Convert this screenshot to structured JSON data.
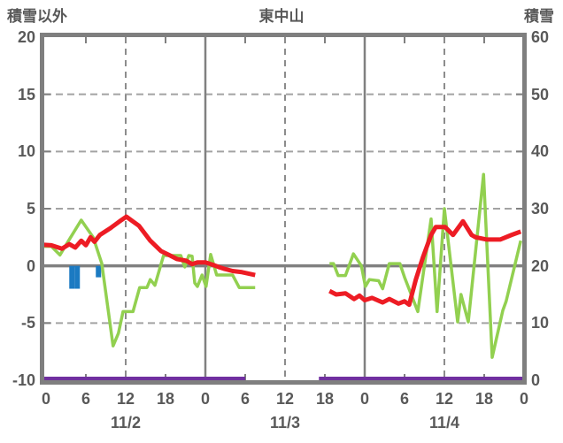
{
  "header": {
    "left_axis_title": "積雪以外",
    "chart_title": "東中山",
    "right_axis_title": "積雪"
  },
  "chart_data": {
    "type": "line",
    "title": "東中山",
    "left_axis": {
      "title": "積雪以外",
      "range": [
        -10,
        20
      ],
      "tick_labels": [
        "20",
        "15",
        "10",
        "5",
        "0",
        "-5",
        "-10"
      ],
      "tick_values": [
        20,
        15,
        10,
        5,
        0,
        -5,
        -10
      ]
    },
    "right_axis": {
      "title": "積雪",
      "range": [
        0,
        60
      ],
      "tick_labels": [
        "60",
        "50",
        "40",
        "30",
        "20",
        "10",
        "0"
      ],
      "tick_values": [
        60,
        50,
        40,
        30,
        20,
        10,
        0
      ]
    },
    "x_axis": {
      "range_hours": [
        0,
        72
      ],
      "tick_hours": [
        0,
        6,
        12,
        18,
        24,
        30,
        36,
        42,
        48,
        54,
        60,
        66,
        72
      ],
      "tick_labels": [
        "0",
        "6",
        "12",
        "18",
        "0",
        "6",
        "12",
        "18",
        "0",
        "6",
        "12",
        "18",
        "0"
      ],
      "date_labels": [
        {
          "label": "11/2",
          "center_hour": 12
        },
        {
          "label": "11/3",
          "center_hour": 36
        },
        {
          "label": "11/4",
          "center_hour": 60
        }
      ]
    },
    "gridlines": {
      "horizontal_dashed_values": [
        15,
        10,
        5,
        -5
      ],
      "horizontal_solid_values": [
        0
      ],
      "vertical_solid_hours": [
        24,
        48
      ],
      "vertical_dashed_hours": [
        12,
        36,
        60
      ],
      "minor_tick_hours": [
        6,
        18,
        30,
        42,
        54,
        66
      ],
      "minor_tick_values": [
        15,
        10,
        5,
        -5
      ]
    },
    "series": [
      {
        "id": "purple-line",
        "axis": "right",
        "color": "#7030a0",
        "segments": [
          [
            [
              -0.5,
              0
            ],
            [
              30.0,
              0
            ]
          ],
          [
            [
              41.1,
              0
            ],
            [
              71.9,
              0
            ]
          ]
        ]
      },
      {
        "id": "green-line",
        "axis": "left",
        "color": "#92d050",
        "segments": [
          [
            [
              -0.5,
              1.7
            ],
            [
              0.8,
              1.7
            ],
            [
              2.1,
              0.95
            ],
            [
              3.5,
              2.3
            ],
            [
              5.3,
              4.0
            ],
            [
              7.1,
              2.5
            ],
            [
              8.4,
              0.2
            ],
            [
              10.1,
              -7.0
            ],
            [
              10.9,
              -5.9
            ],
            [
              11.6,
              -4.0
            ],
            [
              13.1,
              -4.0
            ],
            [
              14.1,
              -1.9
            ],
            [
              15.2,
              -1.9
            ],
            [
              15.7,
              -1.2
            ],
            [
              16.4,
              -1.7
            ],
            [
              17.7,
              0.9
            ],
            [
              20.3,
              0.9
            ],
            [
              20.9,
              -0.1
            ],
            [
              21.5,
              0.9
            ],
            [
              22.0,
              0.85
            ],
            [
              22.4,
              -1.5
            ],
            [
              22.8,
              -1.8
            ],
            [
              23.5,
              -0.8
            ],
            [
              24.1,
              -1.8
            ],
            [
              24.8,
              1.0
            ],
            [
              25.7,
              -0.8
            ],
            [
              28.1,
              -0.8
            ],
            [
              29.1,
              -1.9
            ],
            [
              31.5,
              -1.9
            ]
          ],
          [
            [
              42.7,
              0.2
            ],
            [
              43.3,
              0.2
            ],
            [
              44.0,
              -0.85
            ],
            [
              45.1,
              -0.85
            ],
            [
              46.3,
              1.05
            ],
            [
              47.5,
              0.0
            ],
            [
              48.1,
              -1.8
            ],
            [
              48.7,
              -1.2
            ],
            [
              50.1,
              -1.3
            ],
            [
              50.7,
              -2.0
            ],
            [
              51.7,
              0.2
            ],
            [
              53.3,
              0.2
            ],
            [
              54.0,
              -1.0
            ],
            [
              56.0,
              -4.0
            ],
            [
              58.0,
              4.1
            ],
            [
              58.9,
              -4.0
            ],
            [
              60.0,
              5.0
            ],
            [
              62.0,
              -4.9
            ],
            [
              62.5,
              -2.5
            ],
            [
              63.6,
              -4.9
            ],
            [
              65.9,
              8.0
            ],
            [
              67.2,
              -8.0
            ],
            [
              68.8,
              -3.9
            ],
            [
              69.3,
              -3.1
            ],
            [
              71.5,
              2.2
            ]
          ]
        ]
      },
      {
        "id": "red-line",
        "axis": "left",
        "color": "#ed1c24",
        "segments": [
          [
            [
              -0.5,
              1.85
            ],
            [
              0.8,
              1.8
            ],
            [
              2.4,
              1.5
            ],
            [
              3.5,
              1.9
            ],
            [
              4.4,
              1.6
            ],
            [
              5.3,
              2.2
            ],
            [
              6.0,
              1.8
            ],
            [
              6.7,
              2.5
            ],
            [
              7.3,
              2.1
            ],
            [
              8.1,
              2.7
            ],
            [
              9.7,
              3.3
            ],
            [
              11.1,
              3.9
            ],
            [
              12.1,
              4.3
            ],
            [
              14.0,
              3.5
            ],
            [
              15.7,
              2.2
            ],
            [
              17.3,
              1.3
            ],
            [
              18.7,
              0.9
            ],
            [
              19.7,
              0.6
            ],
            [
              21.1,
              0.45
            ],
            [
              22.0,
              0.15
            ],
            [
              22.8,
              0.3
            ],
            [
              24.0,
              0.3
            ],
            [
              25.1,
              0.1
            ],
            [
              26.0,
              -0.1
            ],
            [
              26.8,
              -0.25
            ],
            [
              28.1,
              -0.45
            ],
            [
              29.5,
              -0.55
            ],
            [
              31.5,
              -0.8
            ]
          ],
          [
            [
              42.7,
              -2.2
            ],
            [
              43.7,
              -2.5
            ],
            [
              45.1,
              -2.4
            ],
            [
              46.4,
              -2.9
            ],
            [
              47.2,
              -2.6
            ],
            [
              48.0,
              -3.0
            ],
            [
              49.1,
              -2.8
            ],
            [
              50.7,
              -3.2
            ],
            [
              51.7,
              -2.9
            ],
            [
              53.1,
              -3.3
            ],
            [
              54.0,
              -3.1
            ],
            [
              54.7,
              -3.4
            ],
            [
              55.7,
              -1.2
            ],
            [
              56.8,
              0.8
            ],
            [
              58.0,
              2.7
            ],
            [
              58.7,
              3.4
            ],
            [
              60.1,
              3.4
            ],
            [
              61.3,
              2.7
            ],
            [
              62.8,
              3.9
            ],
            [
              64.1,
              2.7
            ],
            [
              64.7,
              2.5
            ],
            [
              66.4,
              2.3
            ],
            [
              68.4,
              2.3
            ],
            [
              70.1,
              2.7
            ],
            [
              71.5,
              3.0
            ]
          ]
        ]
      }
    ],
    "bars": {
      "id": "blue-bars",
      "axis": "left",
      "color": "#1b7ac2",
      "points": [
        [
          3.9,
          -2
        ],
        [
          4.7,
          -2
        ],
        [
          7.9,
          -1
        ]
      ]
    }
  }
}
